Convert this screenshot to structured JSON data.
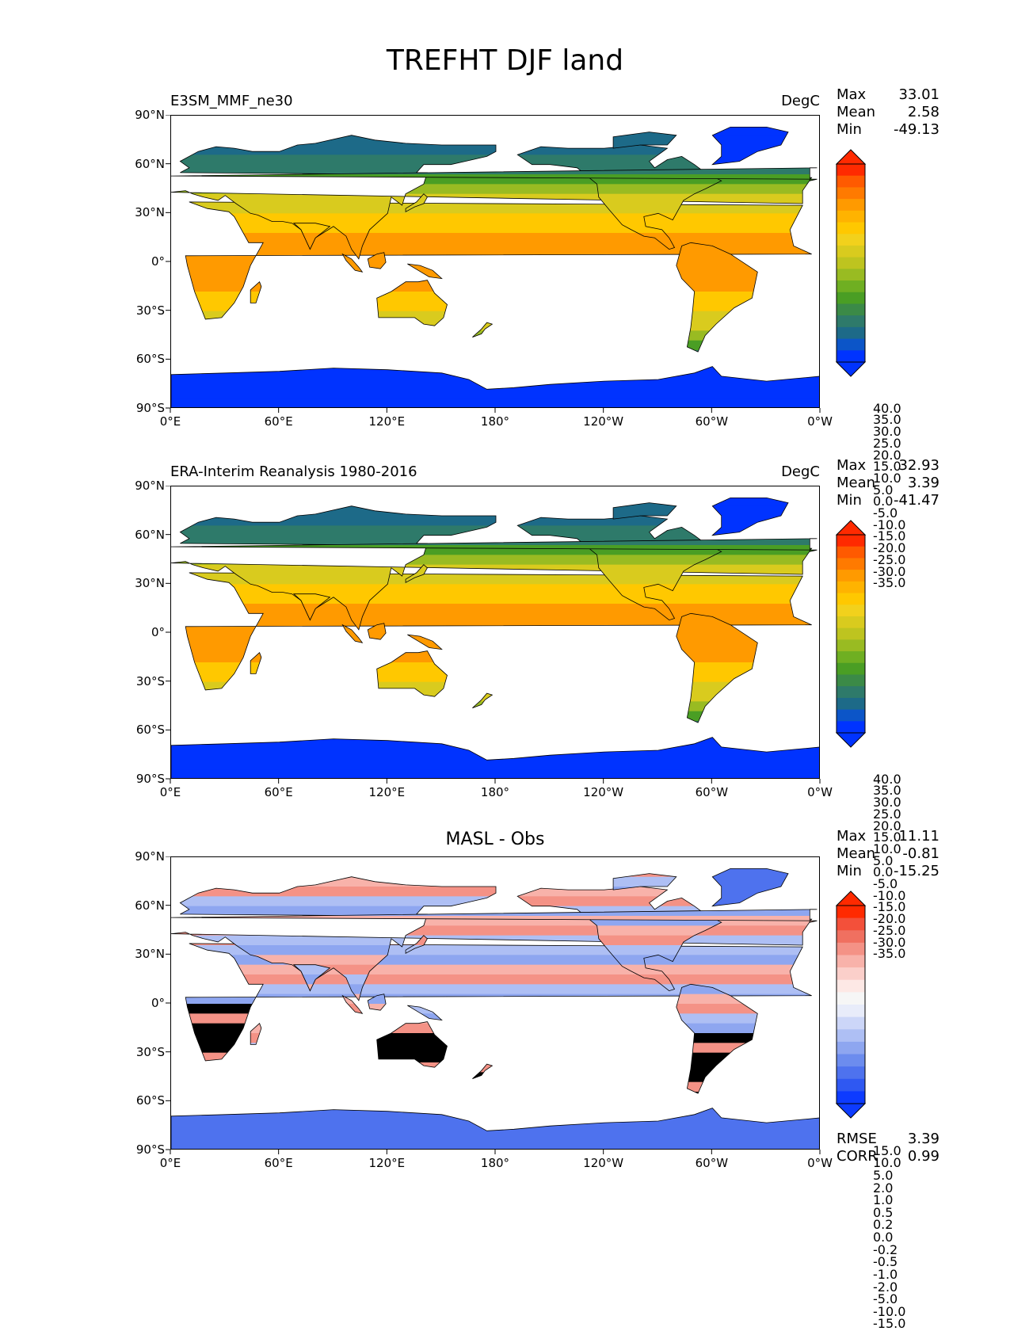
{
  "figure": {
    "title": "TREFHT DJF land"
  },
  "axes": {
    "yticks": [
      "90°N",
      "60°N",
      "30°N",
      "0°",
      "30°S",
      "60°S",
      "90°S"
    ],
    "xticks": [
      "0°E",
      "60°E",
      "120°E",
      "180°",
      "120°W",
      "60°W",
      "0°W"
    ]
  },
  "panels": [
    {
      "left_title": "E3SM_MMF_ne30",
      "right_title": "DegC",
      "center_title": "",
      "stats": [
        {
          "label": "Max",
          "value": "33.01"
        },
        {
          "label": "Mean",
          "value": "2.58"
        },
        {
          "label": "Min",
          "value": "-49.13"
        }
      ],
      "colorbar": {
        "labels": [
          "40.0",
          "35.0",
          "30.0",
          "25.0",
          "20.0",
          "15.0",
          "10.0",
          "5.0",
          "0.0",
          "-5.0",
          "-10.0",
          "-15.0",
          "-20.0",
          "-25.0",
          "-30.0",
          "-35.0"
        ],
        "colors": [
          "#ff2a00",
          "#ff5a00",
          "#ff7a00",
          "#ff9a00",
          "#ffb300",
          "#ffc800",
          "#f2d11c",
          "#d9cb1e",
          "#bec41f",
          "#99bb22",
          "#6faf22",
          "#4a9e24",
          "#3b8a47",
          "#2e7a6a",
          "#1d6a88",
          "#0c55c8",
          "#0033ff"
        ],
        "top_color": "#ff2a00",
        "bottom_color": "#0033ff"
      },
      "extra": [],
      "palette": "temp",
      "map_shift": 0
    },
    {
      "left_title": "ERA-Interim Reanalysis 1980-2016",
      "right_title": "DegC",
      "center_title": "",
      "stats": [
        {
          "label": "Max",
          "value": "32.93"
        },
        {
          "label": "Mean",
          "value": "3.39"
        },
        {
          "label": "Min",
          "value": "-41.47"
        }
      ],
      "colorbar": {
        "labels": [
          "40.0",
          "35.0",
          "30.0",
          "25.0",
          "20.0",
          "15.0",
          "10.0",
          "5.0",
          "0.0",
          "-5.0",
          "-10.0",
          "-15.0",
          "-20.0",
          "-25.0",
          "-30.0",
          "-35.0"
        ],
        "colors": [
          "#ff2a00",
          "#ff5a00",
          "#ff7a00",
          "#ff9a00",
          "#ffb300",
          "#ffc800",
          "#f2d11c",
          "#d9cb1e",
          "#bec41f",
          "#99bb22",
          "#6faf22",
          "#4a9e24",
          "#3b8a47",
          "#2e7a6a",
          "#1d6a88",
          "#0c55c8",
          "#0033ff"
        ],
        "top_color": "#ff2a00",
        "bottom_color": "#0033ff"
      },
      "extra": [],
      "palette": "temp",
      "map_shift": 1
    },
    {
      "left_title": "",
      "right_title": "",
      "center_title": "MASL - Obs",
      "stats": [
        {
          "label": "Max",
          "value": "11.11"
        },
        {
          "label": "Mean",
          "value": "-0.81"
        },
        {
          "label": "Min",
          "value": "-15.25"
        }
      ],
      "colorbar": {
        "labels": [
          "15.0",
          "10.0",
          "5.0",
          "2.0",
          "1.0",
          "0.5",
          "0.2",
          "0.0",
          "-0.2",
          "-0.5",
          "-1.0",
          "-2.0",
          "-5.0",
          "-10.0",
          "-15.0"
        ],
        "colors": [
          "#ff2a00",
          "#f3503a",
          "#f07060",
          "#f49286",
          "#f8b2aa",
          "#fbcfca",
          "#fde8e5",
          "#f6f6f6",
          "#e8ecfa",
          "#ccd6f8",
          "#aebff4",
          "#8ea6f0",
          "#6c8cee",
          "#4e72ee",
          "#2f58f2",
          "#0d3bff"
        ],
        "top_color": "#ff2a00",
        "bottom_color": "#0d3bff"
      },
      "extra": [
        {
          "label": "RMSE",
          "value": "3.39"
        },
        {
          "label": "CORR",
          "value": "0.99"
        }
      ],
      "palette": "diff",
      "map_shift": 2
    }
  ],
  "chart_data": [
    {
      "type": "heatmap",
      "title": "E3SM_MMF_ne30",
      "unit": "DegC",
      "xlim": [
        0,
        360
      ],
      "ylim": [
        -90,
        90
      ],
      "xticks": [
        "0°E",
        "60°E",
        "120°E",
        "180°",
        "120°W",
        "60°W",
        "0°W"
      ],
      "yticks": [
        "90°N",
        "60°N",
        "30°N",
        "0°",
        "30°S",
        "60°S",
        "90°S"
      ],
      "stats": {
        "max": 33.01,
        "mean": 2.58,
        "min": -49.13
      },
      "levels": [
        -35,
        -30,
        -25,
        -20,
        -15,
        -10,
        -5,
        0,
        5,
        10,
        15,
        20,
        25,
        30,
        35,
        40
      ]
    },
    {
      "type": "heatmap",
      "title": "ERA-Interim Reanalysis 1980-2016",
      "unit": "DegC",
      "xlim": [
        0,
        360
      ],
      "ylim": [
        -90,
        90
      ],
      "xticks": [
        "0°E",
        "60°E",
        "120°E",
        "180°",
        "120°W",
        "60°W",
        "0°W"
      ],
      "yticks": [
        "90°N",
        "60°N",
        "30°N",
        "0°",
        "30°S",
        "60°S",
        "90°S"
      ],
      "stats": {
        "max": 32.93,
        "mean": 3.39,
        "min": -41.47
      },
      "levels": [
        -35,
        -30,
        -25,
        -20,
        -15,
        -10,
        -5,
        0,
        5,
        10,
        15,
        20,
        25,
        30,
        35,
        40
      ]
    },
    {
      "type": "heatmap",
      "title": "MASL - Obs",
      "xlim": [
        0,
        360
      ],
      "ylim": [
        -90,
        90
      ],
      "xticks": [
        "0°E",
        "60°E",
        "120°E",
        "180°",
        "120°W",
        "60°W",
        "0°W"
      ],
      "yticks": [
        "90°N",
        "60°N",
        "30°N",
        "0°",
        "30°S",
        "60°S",
        "90°S"
      ],
      "stats": {
        "max": 11.11,
        "mean": -0.81,
        "min": -15.25,
        "rmse": 3.39,
        "corr": 0.99
      },
      "levels": [
        -15,
        -10,
        -5,
        -2,
        -1,
        -0.5,
        -0.2,
        0,
        0.2,
        0.5,
        1,
        2,
        5,
        10,
        15
      ]
    }
  ]
}
